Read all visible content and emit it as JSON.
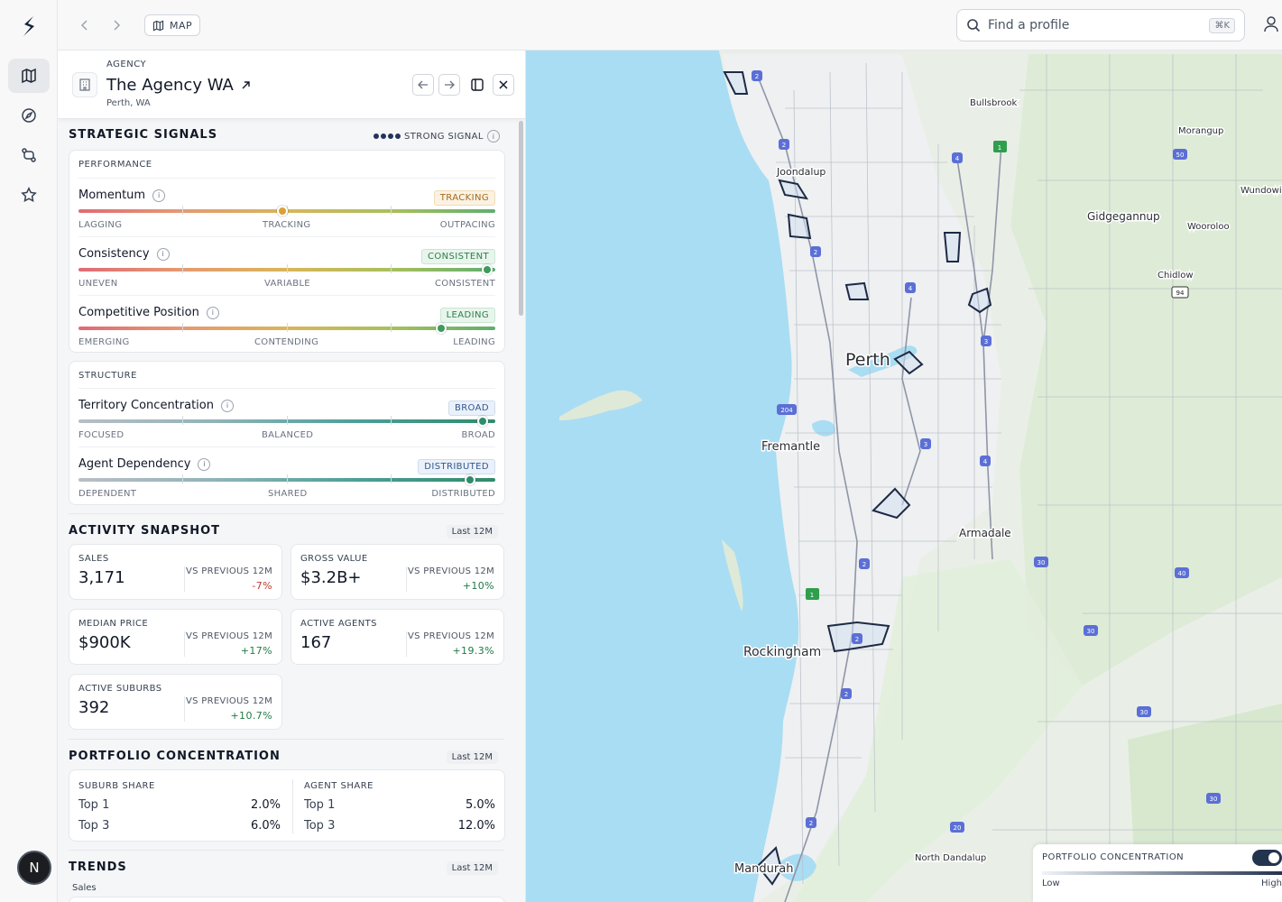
{
  "topbar": {
    "map_chip": "MAP",
    "search_placeholder": "Find a profile",
    "shortcut": "⌘K"
  },
  "rail": {
    "avatar_letter": "N"
  },
  "profile": {
    "type": "AGENCY",
    "name": "The Agency WA",
    "location": "Perth, WA"
  },
  "strategic": {
    "title": "STRATEGIC SIGNALS",
    "signal_label": "STRONG SIGNAL",
    "performance": {
      "label": "PERFORMANCE",
      "items": [
        {
          "name": "Momentum",
          "badge": "TRACKING",
          "low": "LAGGING",
          "mid": "TRACKING",
          "high": "OUTPACING",
          "level": 0.49
        },
        {
          "name": "Consistency",
          "badge": "CONSISTENT",
          "low": "UNEVEN",
          "mid": "VARIABLE",
          "high": "CONSISTENT",
          "level": 0.98
        },
        {
          "name": "Competitive Position",
          "badge": "LEADING",
          "low": "EMERGING",
          "mid": "CONTENDING",
          "high": "LEADING",
          "level": 0.87
        }
      ]
    },
    "structure": {
      "label": "STRUCTURE",
      "items": [
        {
          "name": "Territory Concentration",
          "badge": "BROAD",
          "low": "FOCUSED",
          "mid": "BALANCED",
          "high": "BROAD",
          "level": 0.97
        },
        {
          "name": "Agent Dependency",
          "badge": "DISTRIBUTED",
          "low": "DEPENDENT",
          "mid": "SHARED",
          "high": "DISTRIBUTED",
          "level": 0.94
        }
      ]
    }
  },
  "activity": {
    "title": "ACTIVITY SNAPSHOT",
    "period": "Last 12M",
    "kpis": [
      {
        "label": "SALES",
        "value": "3,171",
        "vs": "VS PREVIOUS 12M",
        "delta": "-7%"
      },
      {
        "label": "GROSS VALUE",
        "value": "$3.2B+",
        "vs": "VS PREVIOUS 12M",
        "delta": "+10%"
      },
      {
        "label": "MEDIAN PRICE",
        "value": "$900K",
        "vs": "VS PREVIOUS 12M",
        "delta": "+17%"
      },
      {
        "label": "ACTIVE AGENTS",
        "value": "167",
        "vs": "VS PREVIOUS 12M",
        "delta": "+19.3%"
      },
      {
        "label": "ACTIVE SUBURBS",
        "value": "392",
        "vs": "VS PREVIOUS 12M",
        "delta": "+10.7%"
      }
    ]
  },
  "portfolio": {
    "title": "PORTFOLIO CONCENTRATION",
    "period": "Last 12M",
    "suburb": {
      "label": "SUBURB SHARE",
      "top1_label": "Top 1",
      "top1": "2.0%",
      "top3_label": "Top 3",
      "top3": "6.0%"
    },
    "agent": {
      "label": "AGENT SHARE",
      "top1_label": "Top 1",
      "top1": "5.0%",
      "top3_label": "Top 3",
      "top3": "12.0%"
    }
  },
  "trends": {
    "title": "TRENDS",
    "period": "Last 12M",
    "sub": "Sales"
  },
  "map": {
    "places": {
      "bullsbrook": "Bullsbrook",
      "morangup": "Morangup",
      "wundowie": "Wundowie",
      "joondalup": "Joondalup",
      "gidgegannup": "Gidgegannup",
      "wooroloo": "Wooroloo",
      "chidlow": "Chidlow",
      "perth": "Perth",
      "fremantle": "Fremantle",
      "armadale": "Armadale",
      "rockingham": "Rockingham",
      "north_dandalup": "North Dandalup",
      "mandurah": "Mandurah"
    },
    "shields": [
      "2",
      "2",
      "4",
      "50",
      "2",
      "4",
      "3",
      "204",
      "3",
      "4",
      "2",
      "30",
      "40",
      "2",
      "30",
      "2",
      "30",
      "2",
      "20",
      "30",
      "94",
      "1",
      "1"
    ]
  },
  "legend": {
    "title": "PORTFOLIO CONCENTRATION",
    "low": "Low",
    "high": "High"
  }
}
